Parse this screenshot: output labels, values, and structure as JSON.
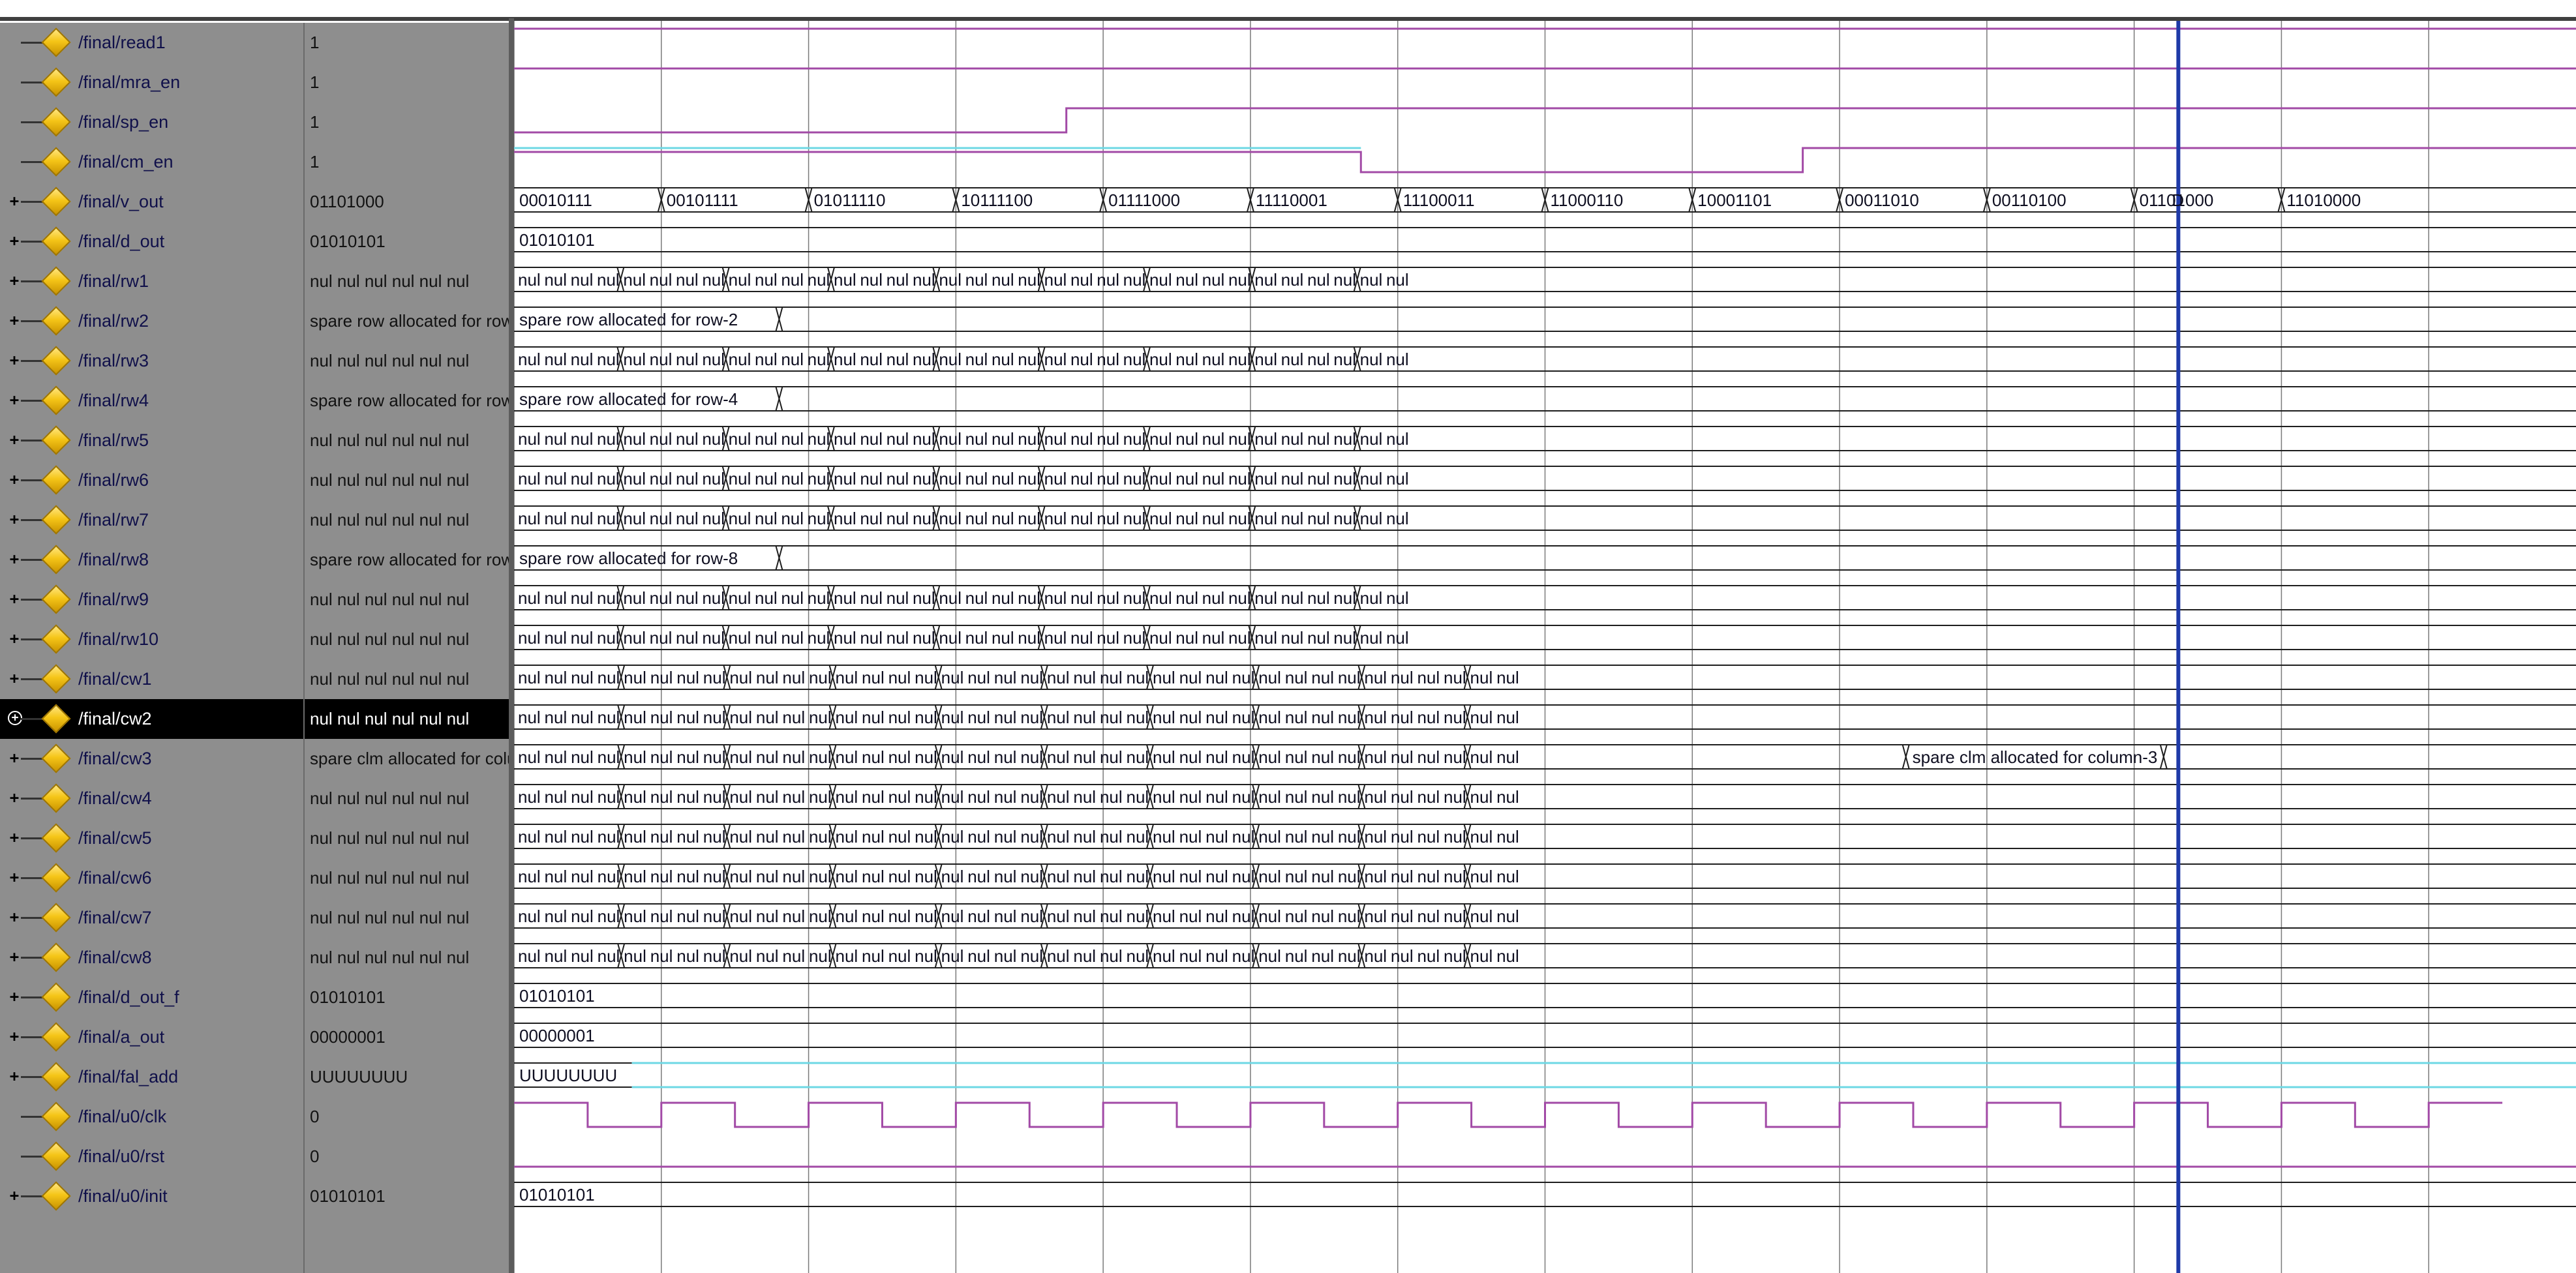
{
  "colors": {
    "bit_line": "#a24aa6",
    "enable_line": "#6ed8e4",
    "bus_line": "#1e1e1e",
    "grid_line": "#7a7a7a",
    "cursor": "#1f3aa8",
    "name_pane_bg": "#8e8e8e",
    "selected_bg": "#000000"
  },
  "icons": {
    "expand": "plus-box-icon",
    "signal": "diamond-signal-icon"
  },
  "signals": [
    {
      "name": "/final/read1",
      "value": "1",
      "expandable": false,
      "selected": false
    },
    {
      "name": "/final/mra_en",
      "value": "1",
      "expandable": false,
      "selected": false
    },
    {
      "name": "/final/sp_en",
      "value": "1",
      "expandable": false,
      "selected": false
    },
    {
      "name": "/final/cm_en",
      "value": "1",
      "expandable": false,
      "selected": false
    },
    {
      "name": "/final/v_out",
      "value": "01101000",
      "expandable": true,
      "selected": false
    },
    {
      "name": "/final/d_out",
      "value": "01010101",
      "expandable": true,
      "selected": false
    },
    {
      "name": "/final/rw1",
      "value": "nul nul nul nul nul nul",
      "expandable": true,
      "selected": false
    },
    {
      "name": "/final/rw2",
      "value": "spare row allocated for row-2",
      "expandable": true,
      "selected": false
    },
    {
      "name": "/final/rw3",
      "value": "nul nul nul nul nul nul",
      "expandable": true,
      "selected": false
    },
    {
      "name": "/final/rw4",
      "value": "spare row allocated for row-4",
      "expandable": true,
      "selected": false
    },
    {
      "name": "/final/rw5",
      "value": "nul nul nul nul nul nul",
      "expandable": true,
      "selected": false
    },
    {
      "name": "/final/rw6",
      "value": "nul nul nul nul nul nul",
      "expandable": true,
      "selected": false
    },
    {
      "name": "/final/rw7",
      "value": "nul nul nul nul nul nul",
      "expandable": true,
      "selected": false
    },
    {
      "name": "/final/rw8",
      "value": "spare row allocated for row-8",
      "expandable": true,
      "selected": false
    },
    {
      "name": "/final/rw9",
      "value": "nul nul nul nul nul nul",
      "expandable": true,
      "selected": false
    },
    {
      "name": "/final/rw10",
      "value": "nul nul nul nul nul nul",
      "expandable": true,
      "selected": false
    },
    {
      "name": "/final/cw1",
      "value": "nul nul nul nul nul nul",
      "expandable": true,
      "selected": false
    },
    {
      "name": "/final/cw2",
      "value": "nul nul nul nul nul nul",
      "expandable": true,
      "selected": true
    },
    {
      "name": "/final/cw3",
      "value": "spare clm allocated for column-3",
      "expandable": true,
      "selected": false
    },
    {
      "name": "/final/cw4",
      "value": "nul nul nul nul nul nul",
      "expandable": true,
      "selected": false
    },
    {
      "name": "/final/cw5",
      "value": "nul nul nul nul nul nul",
      "expandable": true,
      "selected": false
    },
    {
      "name": "/final/cw6",
      "value": "nul nul nul nul nul nul",
      "expandable": true,
      "selected": false
    },
    {
      "name": "/final/cw7",
      "value": "nul nul nul nul nul nul",
      "expandable": true,
      "selected": false
    },
    {
      "name": "/final/cw8",
      "value": "nul nul nul nul nul nul",
      "expandable": true,
      "selected": false
    },
    {
      "name": "/final/d_out_f",
      "value": "01010101",
      "expandable": true,
      "selected": false
    },
    {
      "name": "/final/a_out",
      "value": "00000001",
      "expandable": true,
      "selected": false
    },
    {
      "name": "/final/fal_add",
      "value": "UUUUUUUU",
      "expandable": true,
      "selected": false
    },
    {
      "name": "/final/u0/clk",
      "value": "0",
      "expandable": false,
      "selected": false
    },
    {
      "name": "/final/u0/rst",
      "value": "0",
      "expandable": false,
      "selected": false
    },
    {
      "name": "/final/u0/init",
      "value": "01010101",
      "expandable": true,
      "selected": false
    }
  ],
  "waveform": {
    "clock_period": 2,
    "time_span": 26,
    "cursor_time": 22.6,
    "grid_times": [
      0,
      2,
      4,
      6,
      8,
      10,
      12,
      14,
      16,
      18,
      20,
      22,
      24,
      26
    ],
    "row_kinds": [
      "bit",
      "bit",
      "bit",
      "bit",
      "bus",
      "bus",
      "nul",
      "text",
      "nul",
      "text",
      "nul",
      "nul",
      "nul",
      "text",
      "nul",
      "nul",
      "cnul",
      "cnul",
      "cnul",
      "cnul",
      "cnul",
      "cnul",
      "cnul",
      "cnul",
      "bus",
      "bus",
      "en",
      "clk",
      "bit",
      "bus"
    ],
    "bit_levels": {
      "read1": 1,
      "mra_en": 1,
      "rst": 0
    },
    "sp_en": {
      "step_time": 7.5
    },
    "cm_en": {
      "step_time": 11.5,
      "high_time": 17.5
    },
    "v_out_values": [
      "00010111",
      "00101111",
      "01011110",
      "10111100",
      "01111000",
      "11110001",
      "11100011",
      "11000110",
      "10001101",
      "00011010",
      "00110100",
      "01101000",
      "11010000"
    ],
    "v_out_marker": "D",
    "d_out_value": "01010101",
    "nul_token": "nul",
    "row_nul_count": 34,
    "col_nul_count": 38,
    "nul_end_time": 12.2,
    "col_nul_end_time": 13.7,
    "rw2_text": "spare row allocated for row-2",
    "rw4_text": "spare row allocated for row-4",
    "rw8_text": "spare row allocated for row-8",
    "text_value_change_time": 3.6,
    "cw3_text": "spare clm allocated for column-3",
    "cw3_text_start": 18.9,
    "cw3_text_end": 22.4,
    "d_out_f_value": "01010101",
    "a_out_value": "00000001",
    "fal_add_value": "UUUUUUUU",
    "fal_add_change_time": 1.6,
    "init_value": "01010101"
  }
}
